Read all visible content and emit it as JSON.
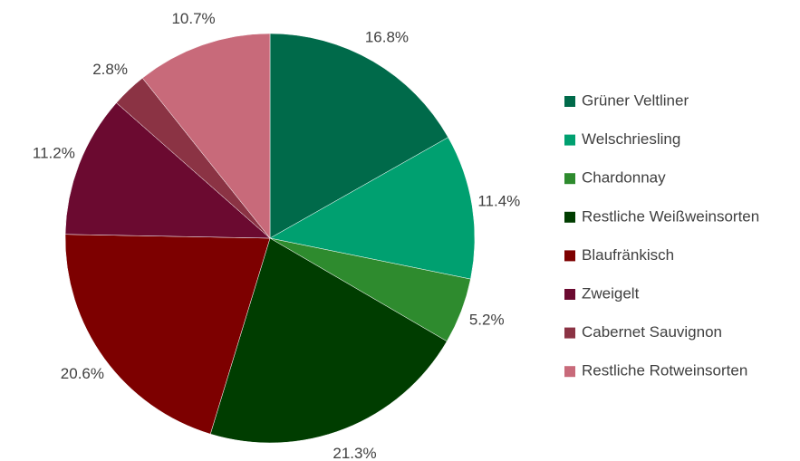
{
  "chart_data": {
    "type": "pie",
    "categories": [
      "Grüner Veltliner",
      "Welschriesling",
      "Chardonnay",
      "Restliche Weißweinsorten",
      "Blaufränkisch",
      "Zweigelt",
      "Cabernet Sauvignon",
      "Restliche Rotweinsorten"
    ],
    "values": [
      16.8,
      11.4,
      5.2,
      21.3,
      20.6,
      11.2,
      2.8,
      10.7
    ],
    "value_labels": [
      "16.8%",
      "11.4%",
      "5.2%",
      "21.3%",
      "20.6%",
      "11.2%",
      "2.8%",
      "10.7%"
    ],
    "colors": [
      "#006a4a",
      "#00a070",
      "#2e8b2e",
      "#003d00",
      "#7d0000",
      "#6b0a30",
      "#8b3344",
      "#c86a7a"
    ],
    "legend": "right"
  }
}
